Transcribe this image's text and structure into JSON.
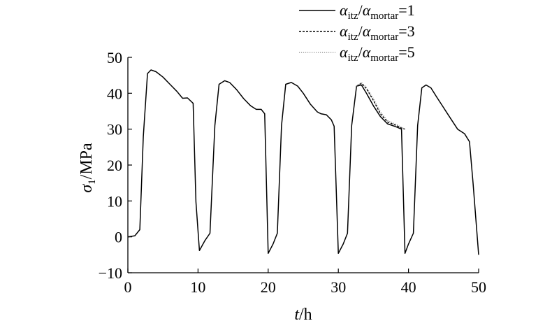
{
  "chart_data": {
    "type": "line",
    "xlabel": {
      "symbol": "t",
      "unit": "/h"
    },
    "ylabel": {
      "symbol": "σ",
      "sub": "1",
      "unit": "/MPa"
    },
    "xlim": [
      0,
      50
    ],
    "ylim": [
      -10,
      50
    ],
    "xticks": [
      0,
      10,
      20,
      30,
      40,
      50
    ],
    "yticks": [
      -10,
      0,
      10,
      20,
      30,
      40,
      50
    ],
    "ytick_labels": [
      "−10",
      "0",
      "10",
      "20",
      "30",
      "40",
      "50"
    ],
    "legend_position": "top-right",
    "grid": false,
    "series": [
      {
        "name": "αitz/αmortar=1",
        "label_parts": {
          "a": "α",
          "a_sub": "itz",
          "b": "α",
          "b_sub": "mortar",
          "eq": "=1"
        },
        "style": "solid",
        "x": [
          0,
          1,
          1.7,
          2.2,
          2.8,
          3.3,
          4,
          5,
          6,
          7,
          7.8,
          8.5,
          9.3,
          9.7,
          10.2,
          11,
          11.7,
          12.4,
          13,
          13.8,
          14.5,
          15.5,
          16.5,
          17.5,
          18.3,
          19,
          19.5,
          20,
          20.7,
          21.3,
          21.9,
          22.5,
          23.3,
          24.2,
          25,
          26,
          27,
          27.5,
          28.3,
          29,
          29.4,
          30,
          30.7,
          31.3,
          31.9,
          32.6,
          33.3,
          34,
          35,
          36,
          37,
          38.3,
          39,
          39.5,
          40,
          40.7,
          41.3,
          41.9,
          42.5,
          43.2,
          44,
          45,
          46,
          47,
          48,
          48.7,
          49.2,
          50
        ],
        "y": [
          0,
          0.3,
          2,
          28,
          45.5,
          46.5,
          46,
          44.5,
          42.5,
          40.5,
          38.6,
          38.7,
          37.2,
          9.8,
          -3.8,
          -1,
          1,
          31,
          42.5,
          43.5,
          43,
          41,
          38.5,
          36.5,
          35.5,
          35.5,
          34.3,
          -4.6,
          -2,
          1,
          31,
          42.5,
          43,
          42,
          40,
          37,
          34.8,
          34.3,
          34,
          32.6,
          30.8,
          -4.6,
          -2,
          1,
          31,
          42,
          42.3,
          40,
          36.5,
          33.5,
          31.5,
          30.6,
          30,
          -4.6,
          -2,
          1,
          31,
          41.5,
          42.3,
          41.5,
          39,
          36,
          33,
          30,
          28.7,
          26.5,
          15,
          -5
        ],
        "color": "#000000"
      },
      {
        "name": "αitz/αmortar=3",
        "label_parts": {
          "a": "α",
          "a_sub": "itz",
          "b": "α",
          "b_sub": "mortar",
          "eq": "=3"
        },
        "style": "dashed",
        "x": [
          32.6,
          33.3,
          34,
          35,
          36,
          37,
          38.3,
          39,
          39.5
        ],
        "y": [
          42,
          42.8,
          41.3,
          38,
          34.3,
          32,
          31,
          30.3,
          30
        ],
        "color": "#000000"
      },
      {
        "name": "αitz/αmortar=5",
        "label_parts": {
          "a": "α",
          "a_sub": "itz",
          "b": "α",
          "b_sub": "mortar",
          "eq": "=5"
        },
        "style": "dotted",
        "x": [
          32.6,
          33.3,
          34,
          35,
          36,
          37,
          38.3,
          39,
          39.5
        ],
        "y": [
          42,
          43,
          41.6,
          38.5,
          34.8,
          32.4,
          31.3,
          30.5,
          30
        ],
        "color": "#888888"
      }
    ]
  }
}
